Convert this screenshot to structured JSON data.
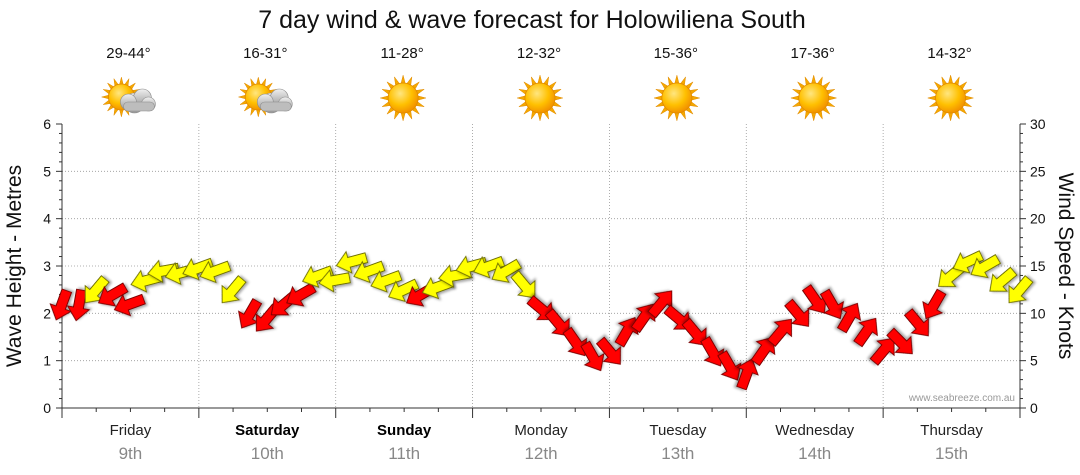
{
  "chart_data": {
    "type": "line",
    "title": "7 day wind & wave forecast for Holowiliena South",
    "ylabel_left": "Wave Height - Metres",
    "ylabel_right": "Wind Speed - Knots",
    "y_left_range": [
      0,
      6
    ],
    "y_left_ticks": [
      "0",
      "1",
      "2",
      "3",
      "4",
      "5",
      "6"
    ],
    "y_right_range": [
      0,
      30
    ],
    "y_right_ticks": [
      "0",
      "5",
      "10",
      "15",
      "20",
      "25",
      "30"
    ],
    "days": [
      {
        "name": "Friday",
        "date": "9th",
        "bold": false,
        "temp": "29-44°",
        "weather": "partly-cloudy"
      },
      {
        "name": "Saturday",
        "date": "10th",
        "bold": true,
        "temp": "16-31°",
        "weather": "partly-cloudy"
      },
      {
        "name": "Sunday",
        "date": "11th",
        "bold": true,
        "temp": "11-28°",
        "weather": "sunny"
      },
      {
        "name": "Monday",
        "date": "12th",
        "bold": false,
        "temp": "12-32°",
        "weather": "sunny"
      },
      {
        "name": "Tuesday",
        "date": "13th",
        "bold": false,
        "temp": "15-36°",
        "weather": "sunny"
      },
      {
        "name": "Wednesday",
        "date": "14th",
        "bold": false,
        "temp": "17-36°",
        "weather": "sunny"
      },
      {
        "name": "Thursday",
        "date": "15th",
        "bold": false,
        "temp": "14-32°",
        "weather": "sunny"
      }
    ],
    "series": [
      {
        "name": "Wind Speed (knots)",
        "x_unit": "hours from start of Friday",
        "x": [
          0,
          3,
          6,
          9,
          12,
          15,
          18,
          21,
          24,
          27,
          30,
          33,
          36,
          39,
          42,
          45,
          48,
          51,
          54,
          57,
          60,
          63,
          66,
          69,
          72,
          75,
          78,
          81,
          84,
          87,
          90,
          93,
          96,
          99,
          102,
          105,
          108,
          111,
          114,
          117,
          120,
          123,
          126,
          129,
          132,
          135,
          138,
          141,
          144,
          147,
          150,
          153,
          156,
          159,
          162,
          165,
          168
        ],
        "values": [
          11,
          11,
          12.5,
          12,
          11,
          13.5,
          14.5,
          14.3,
          14.8,
          14.5,
          12.5,
          10,
          9.5,
          11,
          12,
          14,
          13.5,
          15.5,
          14.5,
          13.5,
          12.5,
          12,
          12.8,
          14,
          15,
          15,
          14.5,
          13,
          10.5,
          9,
          7,
          5.5,
          6,
          8,
          9.5,
          11,
          9.5,
          8,
          6,
          4.5,
          3.5,
          6,
          8,
          10,
          11.5,
          11,
          9.5,
          8,
          6,
          7,
          9,
          11,
          14,
          15.5,
          15,
          13.5,
          12.5
        ],
        "directions_deg": [
          200,
          190,
          220,
          240,
          250,
          255,
          260,
          255,
          250,
          250,
          220,
          210,
          220,
          230,
          240,
          250,
          260,
          255,
          250,
          250,
          245,
          240,
          250,
          260,
          255,
          250,
          240,
          140,
          130,
          140,
          145,
          150,
          140,
          30,
          35,
          40,
          130,
          140,
          150,
          150,
          20,
          35,
          40,
          140,
          145,
          150,
          30,
          35,
          40,
          135,
          140,
          210,
          230,
          245,
          240,
          230,
          220
        ],
        "colors": [
          "#ff0000",
          "#ffff00"
        ]
      }
    ],
    "watermark": "www.seabreeze.com.au"
  }
}
